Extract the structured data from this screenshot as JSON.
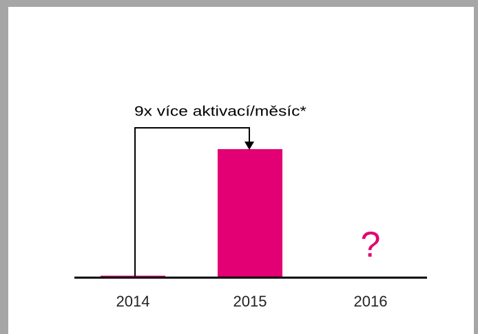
{
  "chart_data": {
    "type": "bar",
    "categories": [
      "2014",
      "2015",
      "2016"
    ],
    "values": [
      1.5,
      100,
      null
    ],
    "color": "#e20074",
    "ylim": [
      0,
      100
    ],
    "annotation": "9x více aktivací/měsíc*",
    "unknown_label": "?"
  }
}
